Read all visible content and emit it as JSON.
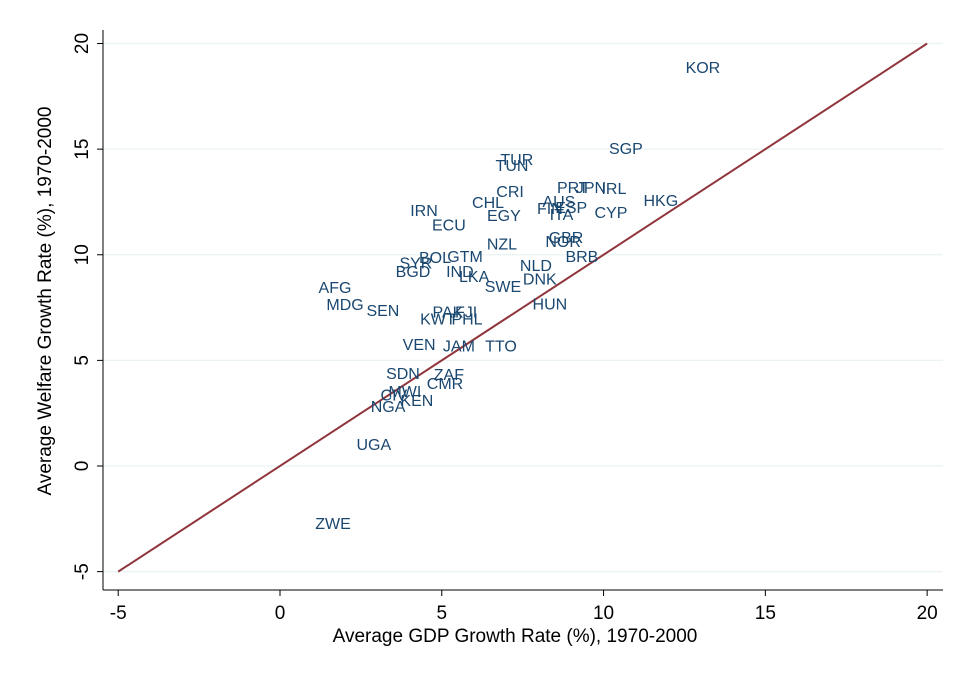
{
  "chart_data": {
    "type": "scatter",
    "x_label": "Average GDP Growth Rate (%), 1970-2000",
    "y_label": "Average Welfare Growth Rate (%), 1970-2000",
    "xlim": [
      -5.47,
      20.49
    ],
    "ylim": [
      -5.87,
      20.64
    ],
    "xticks": [
      -5,
      0,
      5,
      10,
      15,
      20
    ],
    "yticks": [
      -5,
      0,
      5,
      10,
      15,
      20
    ],
    "grid": true,
    "reference_line": {
      "x": [
        -5,
        20
      ],
      "y": [
        -5,
        20
      ],
      "color": "#90353b"
    },
    "series": [
      {
        "color": "#1a476f",
        "labels": [
          "KOR",
          "SGP",
          "TUR",
          "TUN",
          "CRI",
          "PRT",
          "JPN",
          "IRL",
          "HKG",
          "CYP",
          "CHL",
          "IRN",
          "EGY",
          "ECU",
          "BRB",
          "GBR",
          "SWE",
          "HUN",
          "AFG",
          "MDG",
          "SEN",
          "BGD",
          "SYR",
          "BOL",
          "PAK",
          "FJI",
          "PHL",
          "KWT",
          "VEN",
          "JAM",
          "TTO",
          "SDN",
          "ZAF",
          "CMR",
          "MWI",
          "KEN",
          "CIV",
          "NGA",
          "UGA",
          "ZWE",
          "IND",
          "LKA",
          "DNK",
          "NLD",
          "NOR",
          "ITA",
          "AUS",
          "FIN",
          "ESP",
          "NZL",
          "GTM"
        ],
        "x": [
          13.07,
          10.69,
          7.32,
          7.17,
          7.11,
          9.05,
          9.61,
          10.32,
          11.77,
          10.23,
          6.43,
          4.45,
          6.92,
          5.22,
          9.33,
          8.84,
          6.89,
          8.34,
          1.7,
          2.01,
          3.18,
          4.11,
          4.2,
          4.79,
          5.19,
          5.75,
          5.78,
          4.88,
          4.3,
          5.53,
          6.83,
          3.8,
          5.22,
          5.1,
          3.86,
          4.23,
          3.52,
          3.34,
          2.9,
          1.64,
          5.56,
          6.0,
          8.03,
          7.91,
          8.75,
          8.7,
          8.62,
          8.34,
          9.0,
          6.86,
          5.72
        ],
        "y": [
          18.8,
          14.96,
          14.44,
          14.16,
          12.93,
          13.12,
          13.12,
          13.07,
          12.5,
          11.93,
          12.41,
          12.03,
          11.79,
          11.36,
          9.85,
          10.75,
          8.43,
          7.62,
          8.38,
          7.58,
          7.29,
          9.14,
          9.56,
          9.8,
          7.24,
          7.24,
          6.91,
          6.91,
          5.68,
          5.63,
          5.63,
          4.31,
          4.26,
          3.84,
          3.46,
          3.03,
          3.31,
          2.75,
          0.95,
          -2.79,
          9.14,
          8.9,
          8.8,
          9.42,
          10.56,
          11.84,
          12.45,
          12.12,
          12.17,
          10.46,
          9.85
        ]
      }
    ]
  }
}
